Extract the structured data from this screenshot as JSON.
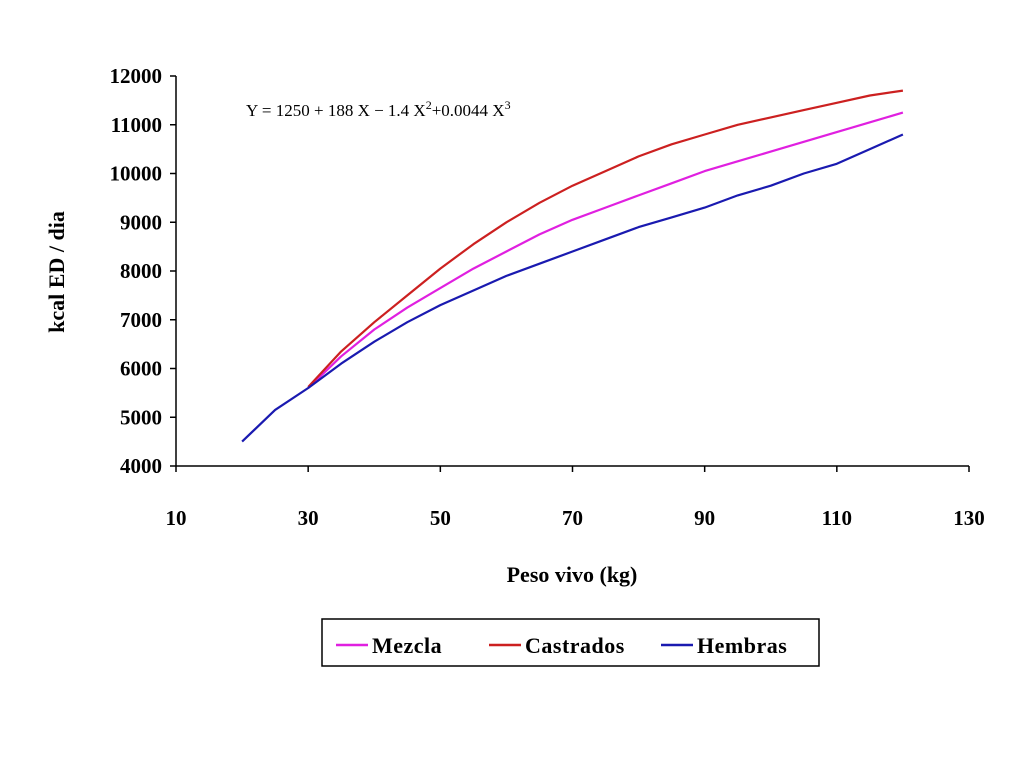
{
  "chart_data": {
    "type": "line",
    "title": "",
    "xlabel": "Peso vivo (kg)",
    "ylabel": "kcal ED / dia",
    "xlim": [
      10,
      130
    ],
    "ylim": [
      4000,
      12000
    ],
    "xticks": [
      10,
      30,
      50,
      70,
      90,
      110,
      130
    ],
    "yticks": [
      4000,
      5000,
      6000,
      7000,
      8000,
      9000,
      10000,
      11000,
      12000
    ],
    "annotation": {
      "base": "Y = 1250 + 188 X − 1.4 X",
      "sup1": "2",
      "mid": "+0.0044 X",
      "sup2": "3"
    },
    "legend_position": "bottom",
    "series": [
      {
        "name": "Mezcla",
        "color": "#e020e0",
        "x": [
          30,
          35,
          40,
          45,
          50,
          55,
          60,
          65,
          70,
          75,
          80,
          85,
          90,
          95,
          100,
          105,
          110,
          115,
          120
        ],
        "y": [
          5600,
          6250,
          6800,
          7250,
          7650,
          8050,
          8400,
          8750,
          9050,
          9300,
          9550,
          9800,
          10050,
          10250,
          10450,
          10650,
          10850,
          11050,
          11250
        ]
      },
      {
        "name": "Castrados",
        "color": "#cc2020",
        "x": [
          30,
          35,
          40,
          45,
          50,
          55,
          60,
          65,
          70,
          75,
          80,
          85,
          90,
          95,
          100,
          105,
          110,
          115,
          120
        ],
        "y": [
          5620,
          6350,
          6950,
          7500,
          8050,
          8550,
          9000,
          9400,
          9750,
          10050,
          10350,
          10600,
          10800,
          11000,
          11150,
          11300,
          11450,
          11600,
          11700
        ]
      },
      {
        "name": "Hembras",
        "color": "#1a1ab0",
        "x": [
          20,
          25,
          30,
          35,
          40,
          45,
          50,
          55,
          60,
          65,
          70,
          75,
          80,
          85,
          90,
          95,
          100,
          105,
          110,
          115,
          120
        ],
        "y": [
          4500,
          5150,
          5600,
          6100,
          6550,
          6950,
          7300,
          7600,
          7900,
          8150,
          8400,
          8650,
          8900,
          9100,
          9300,
          9550,
          9750,
          10000,
          10200,
          10500,
          10800
        ]
      }
    ]
  }
}
